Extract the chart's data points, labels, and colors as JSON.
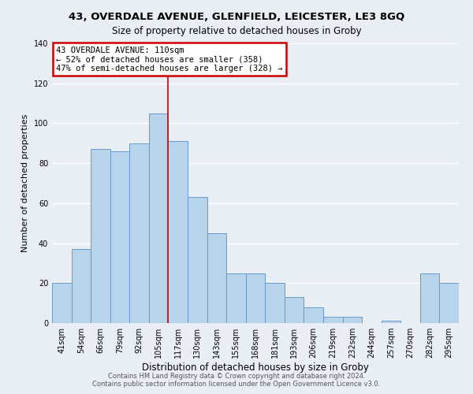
{
  "title1": "43, OVERDALE AVENUE, GLENFIELD, LEICESTER, LE3 8GQ",
  "title2": "Size of property relative to detached houses in Groby",
  "xlabel": "Distribution of detached houses by size in Groby",
  "ylabel": "Number of detached properties",
  "bar_labels": [
    "41sqm",
    "54sqm",
    "66sqm",
    "79sqm",
    "92sqm",
    "105sqm",
    "117sqm",
    "130sqm",
    "143sqm",
    "155sqm",
    "168sqm",
    "181sqm",
    "193sqm",
    "206sqm",
    "219sqm",
    "232sqm",
    "244sqm",
    "257sqm",
    "270sqm",
    "282sqm",
    "295sqm"
  ],
  "bar_values": [
    20,
    37,
    87,
    86,
    90,
    105,
    91,
    63,
    45,
    25,
    25,
    20,
    13,
    8,
    3,
    3,
    0,
    1,
    0,
    25,
    20
  ],
  "bar_color": "#b8d4ea",
  "bar_edge_color": "#6699cc",
  "ylim": [
    0,
    140
  ],
  "yticks": [
    0,
    20,
    40,
    60,
    80,
    100,
    120,
    140
  ],
  "property_line_x": 5.5,
  "annotation_title": "43 OVERDALE AVENUE: 110sqm",
  "annotation_line1": "← 52% of detached houses are smaller (358)",
  "annotation_line2": "47% of semi-detached houses are larger (328) →",
  "annotation_box_color": "#ffffff",
  "annotation_box_edge": "#cc0000",
  "footer1": "Contains HM Land Registry data © Crown copyright and database right 2024.",
  "footer2": "Contains public sector information licensed under the Open Government Licence v3.0.",
  "background_color": "#e8eef4",
  "grid_color": "#ffffff",
  "line_color": "#cc0000",
  "title1_fontsize": 9.5,
  "title2_fontsize": 8.5,
  "xlabel_fontsize": 8.5,
  "ylabel_fontsize": 8.0,
  "tick_fontsize": 7.0,
  "footer_fontsize": 6.0
}
